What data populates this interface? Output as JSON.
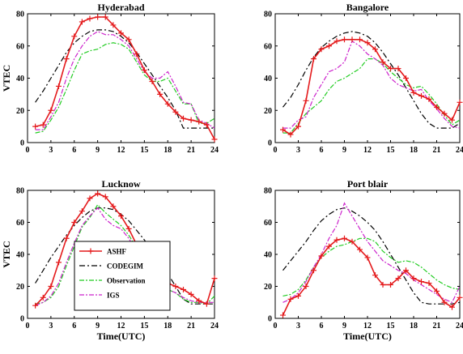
{
  "colors": {
    "ASHF": "#e41a1c",
    "CODEGIM": "#000000",
    "Observation": "#22cc22",
    "IGS": "#cc22cc"
  },
  "chart_data": [
    {
      "type": "line",
      "title": "Hyderabad",
      "xlabel": "",
      "ylabel": "VTEC",
      "xlim": [
        0,
        24
      ],
      "ylim": [
        0,
        80
      ],
      "xticks": [
        "0",
        "3",
        "6",
        "9",
        "12",
        "15",
        "18",
        "21",
        "24"
      ],
      "yticks": [
        "0",
        "20",
        "40",
        "60",
        "80"
      ],
      "series": [
        {
          "name": "ASHF",
          "x": [
            1,
            2,
            3,
            4,
            5,
            6,
            7,
            8,
            9,
            10,
            11,
            12,
            13,
            14,
            15,
            16,
            17,
            18,
            19,
            20,
            21,
            22,
            23,
            24
          ],
          "y": [
            10,
            11,
            20,
            35,
            52,
            66,
            75,
            77,
            78,
            78,
            73,
            68,
            64,
            55,
            45,
            38,
            30,
            24,
            19,
            15,
            14,
            13,
            11,
            2
          ]
        },
        {
          "name": "CODEGIM",
          "x": [
            1,
            2,
            3,
            4,
            5,
            6,
            7,
            8,
            9,
            10,
            11,
            12,
            13,
            14,
            15,
            16,
            17,
            18,
            19,
            20,
            21,
            22,
            23,
            24
          ],
          "y": [
            25,
            32,
            40,
            48,
            56,
            62,
            66,
            69,
            70,
            70,
            69,
            66,
            62,
            56,
            49,
            42,
            35,
            28,
            20,
            9,
            9,
            9,
            9,
            9
          ]
        },
        {
          "name": "Observation",
          "x": [
            1,
            2,
            3,
            4,
            5,
            6,
            7,
            8,
            9,
            10,
            11,
            12,
            13,
            14,
            15,
            16,
            17,
            18,
            19,
            20,
            21,
            22,
            23,
            24
          ],
          "y": [
            6,
            7,
            14,
            22,
            33,
            45,
            55,
            57,
            58,
            61,
            62,
            61,
            58,
            50,
            42,
            38,
            38,
            40,
            32,
            24,
            24,
            12,
            12,
            15
          ]
        },
        {
          "name": "IGS",
          "x": [
            1,
            2,
            3,
            4,
            5,
            6,
            7,
            8,
            9,
            10,
            11,
            12,
            13,
            14,
            15,
            16,
            17,
            18,
            19,
            20,
            21,
            22,
            23,
            24
          ],
          "y": [
            8,
            8,
            16,
            25,
            40,
            52,
            60,
            66,
            69,
            67,
            67,
            64,
            60,
            52,
            44,
            40,
            40,
            44,
            35,
            25,
            24,
            14,
            12,
            9
          ]
        }
      ]
    },
    {
      "type": "line",
      "title": "Bangalore",
      "xlabel": "",
      "ylabel": "",
      "xlim": [
        0,
        24
      ],
      "ylim": [
        0,
        80
      ],
      "xticks": [
        "0",
        "3",
        "6",
        "9",
        "12",
        "15",
        "18",
        "21",
        "24"
      ],
      "yticks": [
        "0",
        "20",
        "40",
        "60",
        "80"
      ],
      "series": [
        {
          "name": "ASHF",
          "x": [
            1,
            2,
            3,
            4,
            5,
            6,
            7,
            8,
            9,
            10,
            11,
            12,
            13,
            14,
            15,
            16,
            17,
            18,
            19,
            20,
            21,
            22,
            23,
            24
          ],
          "y": [
            8,
            5,
            10,
            26,
            52,
            58,
            60,
            63,
            64,
            64,
            64,
            62,
            58,
            50,
            46,
            46,
            40,
            31,
            29,
            27,
            22,
            18,
            14,
            25
          ]
        },
        {
          "name": "CODEGIM",
          "x": [
            1,
            2,
            3,
            4,
            5,
            6,
            7,
            8,
            9,
            10,
            11,
            12,
            13,
            14,
            15,
            16,
            17,
            18,
            19,
            20,
            21,
            22,
            23,
            24
          ],
          "y": [
            22,
            28,
            36,
            45,
            53,
            59,
            63,
            66,
            68,
            69,
            68,
            66,
            62,
            56,
            49,
            42,
            34,
            26,
            18,
            12,
            9,
            9,
            9,
            12
          ]
        },
        {
          "name": "Observation",
          "x": [
            1,
            2,
            3,
            4,
            5,
            6,
            7,
            8,
            9,
            10,
            11,
            12,
            13,
            14,
            15,
            16,
            17,
            18,
            19,
            20,
            21,
            22,
            23,
            24
          ],
          "y": [
            6,
            6,
            12,
            18,
            22,
            26,
            33,
            38,
            40,
            43,
            46,
            52,
            52,
            49,
            44,
            40,
            36,
            34,
            35,
            30,
            24,
            17,
            11,
            14
          ]
        },
        {
          "name": "IGS",
          "x": [
            1,
            2,
            3,
            4,
            5,
            6,
            7,
            8,
            9,
            10,
            11,
            12,
            13,
            14,
            15,
            16,
            17,
            18,
            19,
            20,
            21,
            22,
            23,
            24
          ],
          "y": [
            9,
            9,
            14,
            16,
            28,
            36,
            44,
            46,
            50,
            63,
            60,
            55,
            52,
            48,
            40,
            36,
            34,
            32,
            33,
            26,
            21,
            15,
            10,
            9
          ]
        }
      ]
    },
    {
      "type": "line",
      "title": "Lucknow",
      "xlabel": "Time(UTC)",
      "ylabel": "VTEC",
      "xlim": [
        0,
        24
      ],
      "ylim": [
        0,
        80
      ],
      "xticks": [
        "0",
        "3",
        "6",
        "9",
        "12",
        "15",
        "18",
        "21",
        "24"
      ],
      "yticks": [
        "0",
        "20",
        "40",
        "60",
        "80"
      ],
      "series": [
        {
          "name": "ASHF",
          "x": [
            1,
            2,
            3,
            4,
            5,
            6,
            7,
            8,
            9,
            10,
            11,
            12,
            13,
            14,
            15,
            16,
            17,
            18,
            19,
            20,
            21,
            22,
            23,
            24
          ],
          "y": [
            8,
            13,
            20,
            35,
            50,
            60,
            67,
            75,
            78,
            76,
            70,
            64,
            56,
            46,
            40,
            34,
            28,
            22,
            20,
            18,
            15,
            11,
            9,
            25
          ]
        },
        {
          "name": "CODEGIM",
          "x": [
            1,
            2,
            3,
            4,
            5,
            6,
            7,
            8,
            9,
            10,
            11,
            12,
            13,
            14,
            15,
            16,
            17,
            18,
            19,
            20,
            21,
            22,
            23,
            24
          ],
          "y": [
            22,
            30,
            38,
            45,
            52,
            58,
            63,
            67,
            69,
            69,
            68,
            65,
            61,
            55,
            49,
            42,
            35,
            28,
            20,
            12,
            9,
            9,
            9,
            9
          ]
        },
        {
          "name": "Observation",
          "x": [
            1,
            2,
            3,
            4,
            5,
            6,
            7,
            8,
            9,
            10,
            11,
            12,
            13,
            14,
            15,
            16,
            17,
            18,
            19,
            20,
            21,
            22,
            23,
            24
          ],
          "y": [
            9,
            10,
            13,
            20,
            33,
            45,
            57,
            63,
            71,
            66,
            62,
            58,
            52,
            44,
            36,
            30,
            24,
            18,
            16,
            12,
            10,
            10,
            9,
            14
          ]
        },
        {
          "name": "IGS",
          "x": [
            1,
            2,
            3,
            4,
            5,
            6,
            7,
            8,
            9,
            10,
            11,
            12,
            13,
            14,
            15,
            16,
            17,
            18,
            19,
            20,
            21,
            22,
            23,
            24
          ],
          "y": [
            8,
            10,
            14,
            22,
            35,
            47,
            58,
            64,
            69,
            62,
            58,
            56,
            50,
            42,
            36,
            28,
            22,
            18,
            16,
            13,
            11,
            10,
            10,
            10
          ]
        }
      ]
    },
    {
      "type": "line",
      "title": "Port blair",
      "xlabel": "Time(UTC)",
      "ylabel": "",
      "xlim": [
        0,
        24
      ],
      "ylim": [
        0,
        80
      ],
      "xticks": [
        "0",
        "3",
        "6",
        "9",
        "12",
        "15",
        "18",
        "21",
        "24"
      ],
      "yticks": [
        "0",
        "20",
        "40",
        "60",
        "80"
      ],
      "series": [
        {
          "name": "ASHF",
          "x": [
            1,
            2,
            3,
            4,
            5,
            6,
            7,
            8,
            9,
            10,
            11,
            12,
            13,
            14,
            15,
            16,
            17,
            18,
            19,
            20,
            21,
            22,
            23,
            24
          ],
          "y": [
            2,
            12,
            14,
            20,
            30,
            39,
            45,
            49,
            50,
            48,
            43,
            38,
            27,
            21,
            21,
            25,
            30,
            25,
            23,
            22,
            17,
            10,
            7,
            13
          ]
        },
        {
          "name": "CODEGIM",
          "x": [
            1,
            2,
            3,
            4,
            5,
            6,
            7,
            8,
            9,
            10,
            11,
            12,
            13,
            14,
            15,
            16,
            17,
            18,
            19,
            20,
            21,
            22,
            23,
            24
          ],
          "y": [
            30,
            36,
            42,
            48,
            55,
            61,
            65,
            68,
            69,
            67,
            64,
            60,
            55,
            48,
            40,
            32,
            24,
            16,
            10,
            9,
            9,
            9,
            9,
            10
          ]
        },
        {
          "name": "Observation",
          "x": [
            1,
            2,
            3,
            4,
            5,
            6,
            7,
            8,
            9,
            10,
            11,
            12,
            13,
            14,
            15,
            16,
            17,
            18,
            19,
            20,
            21,
            22,
            23,
            24
          ],
          "y": [
            14,
            15,
            18,
            24,
            32,
            38,
            42,
            45,
            46,
            48,
            50,
            50,
            48,
            42,
            38,
            35,
            36,
            35,
            32,
            28,
            24,
            21,
            19,
            18
          ]
        },
        {
          "name": "IGS",
          "x": [
            1,
            2,
            3,
            4,
            5,
            6,
            7,
            8,
            9,
            10,
            11,
            12,
            13,
            14,
            15,
            16,
            17,
            18,
            19,
            20,
            21,
            22,
            23,
            24
          ],
          "y": [
            10,
            12,
            16,
            23,
            32,
            40,
            50,
            58,
            72,
            64,
            56,
            48,
            42,
            36,
            33,
            30,
            28,
            24,
            21,
            18,
            15,
            12,
            10,
            20
          ]
        }
      ]
    }
  ]
}
